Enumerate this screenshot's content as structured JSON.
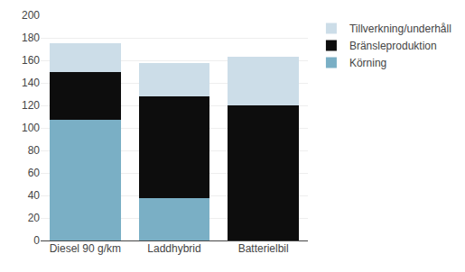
{
  "chart_data": {
    "type": "bar",
    "stacked": true,
    "categories": [
      "Diesel 90 g/km",
      "Laddhybrid",
      "Batterielbil"
    ],
    "series": [
      {
        "name": "Körning",
        "color": "#7aafc5",
        "values": [
          107,
          38,
          0
        ]
      },
      {
        "name": "Bränsleproduktion",
        "color": "#0d0d0d",
        "values": [
          43,
          90,
          120
        ]
      },
      {
        "name": "Tillverkning/underhåll",
        "color": "#ccdde8",
        "values": [
          25,
          30,
          43
        ]
      }
    ],
    "ylim": [
      0,
      200
    ],
    "yticks": [
      0,
      20,
      40,
      60,
      80,
      100,
      120,
      140,
      160,
      180,
      200
    ],
    "grid": true,
    "legend": "right"
  }
}
